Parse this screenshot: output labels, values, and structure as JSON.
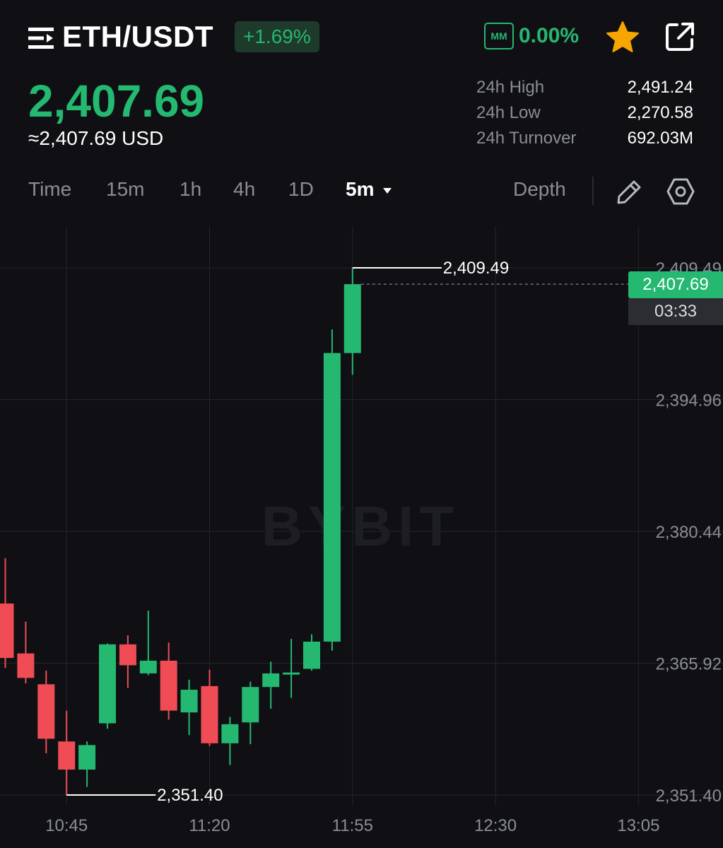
{
  "header": {
    "pair": "ETH/USDT",
    "change": "+1.69%",
    "mm_label": "MM",
    "mm_value": "0.00%",
    "icons": [
      "menu-icon",
      "star-icon",
      "share-icon"
    ]
  },
  "price": {
    "last": "2,407.69",
    "usd": "≈2,407.69 USD"
  },
  "stats": [
    {
      "label": "24h High",
      "value": "2,491.24"
    },
    {
      "label": "24h Low",
      "value": "2,270.58"
    },
    {
      "label": "24h Turnover",
      "value": "692.03M"
    }
  ],
  "tabs": {
    "time": "Time",
    "m15": "15m",
    "h1": "1h",
    "h4": "4h",
    "d1": "1D",
    "m5": "5m",
    "depth": "Depth"
  },
  "colors": {
    "up": "#25b871",
    "down": "#ef4c55",
    "background": "#101014"
  },
  "chart_data": {
    "type": "candlestick",
    "watermark": "BYBIT",
    "x_labels": [
      "10:45",
      "11:20",
      "11:55",
      "12:30",
      "13:05"
    ],
    "y_labels": [
      "2,409.49",
      "2,394.96",
      "2,380.44",
      "2,365.92",
      "2,351.40"
    ],
    "ylim": [
      2351.4,
      2409.49
    ],
    "grid": true,
    "high_label": "2,409.49",
    "low_label": "2,351.40",
    "current_price": "2,407.69",
    "countdown": "03:33",
    "candles": [
      {
        "open": 2372.5,
        "high": 2377.5,
        "low": 2365.4,
        "close": 2366.5
      },
      {
        "open": 2367.0,
        "high": 2370.5,
        "low": 2363.7,
        "close": 2364.3
      },
      {
        "open": 2363.6,
        "high": 2365.1,
        "low": 2356.0,
        "close": 2357.6
      },
      {
        "open": 2357.3,
        "high": 2360.7,
        "low": 2351.4,
        "close": 2354.2
      },
      {
        "open": 2354.2,
        "high": 2357.3,
        "low": 2352.3,
        "close": 2356.9
      },
      {
        "open": 2359.3,
        "high": 2368.1,
        "low": 2358.7,
        "close": 2368.0
      },
      {
        "open": 2368.0,
        "high": 2369.0,
        "low": 2363.2,
        "close": 2365.7
      },
      {
        "open": 2364.8,
        "high": 2371.7,
        "low": 2364.6,
        "close": 2366.2
      },
      {
        "open": 2366.2,
        "high": 2368.2,
        "low": 2359.7,
        "close": 2360.7
      },
      {
        "open": 2360.5,
        "high": 2364.1,
        "low": 2358.0,
        "close": 2363.0
      },
      {
        "open": 2363.4,
        "high": 2365.2,
        "low": 2356.8,
        "close": 2357.1
      },
      {
        "open": 2357.1,
        "high": 2360.0,
        "low": 2354.7,
        "close": 2359.2
      },
      {
        "open": 2359.4,
        "high": 2363.9,
        "low": 2357.0,
        "close": 2363.3
      },
      {
        "open": 2363.3,
        "high": 2366.1,
        "low": 2360.9,
        "close": 2364.8
      },
      {
        "open": 2364.8,
        "high": 2368.6,
        "low": 2362.1,
        "close": 2364.9
      },
      {
        "open": 2365.3,
        "high": 2369.1,
        "low": 2365.1,
        "close": 2368.3
      },
      {
        "open": 2368.3,
        "high": 2402.7,
        "low": 2367.3,
        "close": 2400.1
      },
      {
        "open": 2400.1,
        "high": 2409.49,
        "low": 2397.7,
        "close": 2407.69
      }
    ]
  }
}
